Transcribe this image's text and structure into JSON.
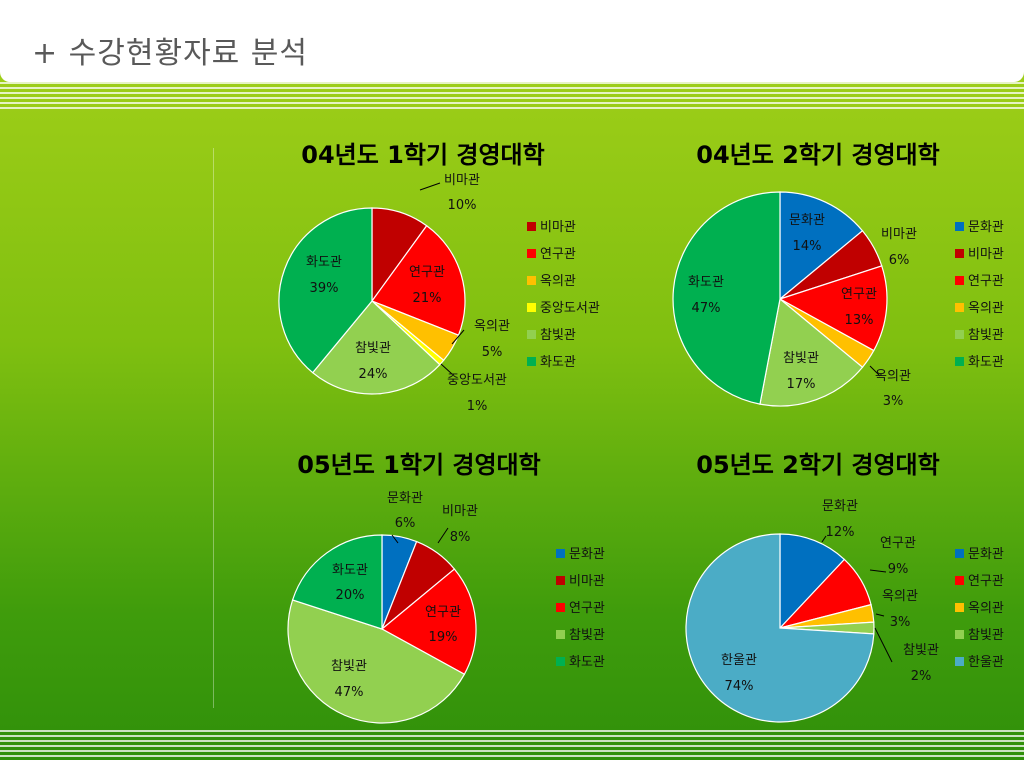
{
  "page": {
    "title": "+ 수강현황자료 분석"
  },
  "chart_data": [
    {
      "type": "pie",
      "title": "04년도 1학기 경영대학",
      "categories": [
        "비마관",
        "연구관",
        "옥의관",
        "중앙도서관",
        "참빛관",
        "화도관"
      ],
      "values": [
        10,
        21,
        5,
        1,
        24,
        39
      ],
      "labels": [
        "10%",
        "21%",
        "5%",
        "1%",
        "24%",
        "39%"
      ],
      "colors": [
        "#c00000",
        "#ff0000",
        "#ffc000",
        "#ffff00",
        "#92d050",
        "#00b050"
      ]
    },
    {
      "type": "pie",
      "title": "04년도 2학기 경영대학",
      "categories": [
        "문화관",
        "비마관",
        "연구관",
        "옥의관",
        "참빛관",
        "화도관"
      ],
      "values": [
        14,
        6,
        13,
        3,
        17,
        47
      ],
      "labels": [
        "14%",
        "6%",
        "13%",
        "3%",
        "17%",
        "47%"
      ],
      "colors": [
        "#0070c0",
        "#c00000",
        "#ff0000",
        "#ffc000",
        "#92d050",
        "#00b050"
      ]
    },
    {
      "type": "pie",
      "title": "05년도 1학기 경영대학",
      "categories": [
        "문화관",
        "비마관",
        "연구관",
        "참빛관",
        "화도관"
      ],
      "values": [
        6,
        8,
        19,
        47,
        20
      ],
      "labels": [
        "6%",
        "8%",
        "19%",
        "47%",
        "20%"
      ],
      "colors": [
        "#0070c0",
        "#c00000",
        "#ff0000",
        "#92d050",
        "#00b050"
      ]
    },
    {
      "type": "pie",
      "title": "05년도 2학기 경영대학",
      "categories": [
        "문화관",
        "연구관",
        "옥의관",
        "참빛관",
        "한울관"
      ],
      "values": [
        12,
        9,
        3,
        2,
        74
      ],
      "labels": [
        "12%",
        "9%",
        "3%",
        "2%",
        "74%"
      ],
      "colors": [
        "#0070c0",
        "#ff0000",
        "#ffc000",
        "#92d050",
        "#4bacc6"
      ]
    }
  ]
}
